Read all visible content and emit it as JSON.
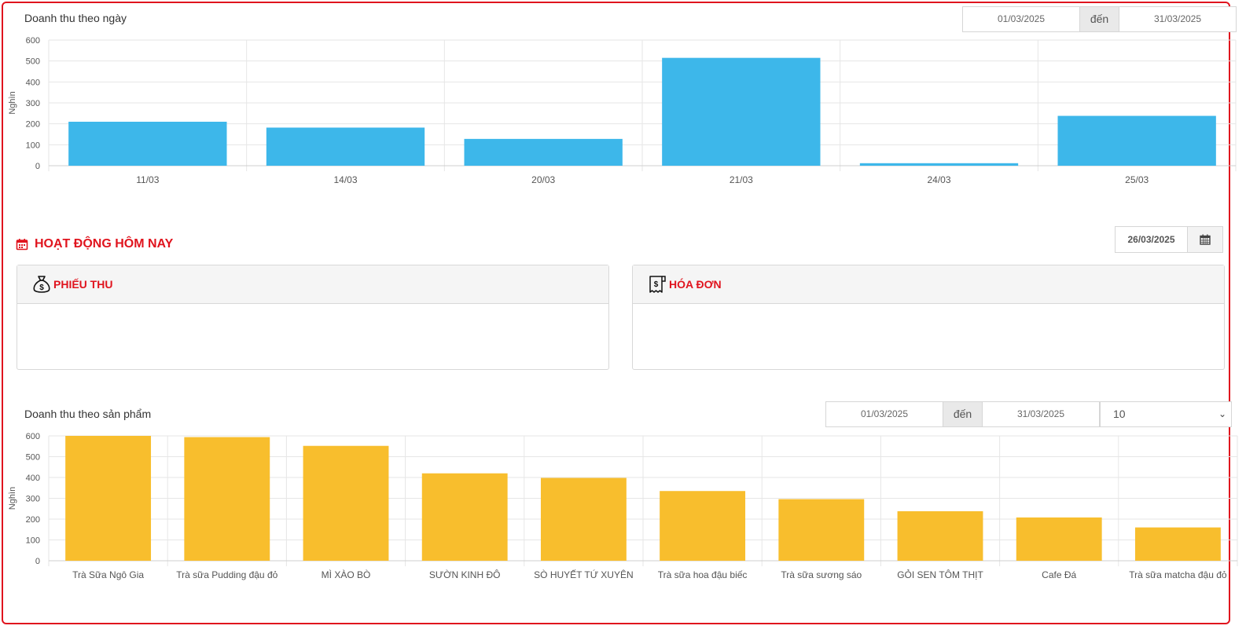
{
  "daily_chart": {
    "title": "Doanh thu theo ngày",
    "date_from": "01/03/2025",
    "date_sep": "đến",
    "date_to": "31/03/2025"
  },
  "today": {
    "title": "HOẠT ĐỘNG HÔM NAY",
    "date": "26/03/2025",
    "receipts_title": "PHIẾU THU",
    "invoices_title": "HÓA ĐƠN"
  },
  "product_chart": {
    "title": "Doanh thu theo sản phẩm",
    "date_from": "01/03/2025",
    "date_sep": "đến",
    "date_to": "31/03/2025",
    "limit": "10"
  },
  "colors": {
    "accent": "#e0141e",
    "daily_bar": "#3db7ea",
    "product_bar": "#f8be2d"
  },
  "chart_data": [
    {
      "type": "bar",
      "title": "Doanh thu theo ngày",
      "xlabel": "",
      "ylabel": "Nghìn",
      "categories": [
        "11/03",
        "14/03",
        "20/03",
        "21/03",
        "24/03",
        "25/03"
      ],
      "values": [
        210,
        182,
        128,
        515,
        12,
        238
      ],
      "ylim": [
        0,
        600
      ],
      "yticks": [
        0,
        100,
        200,
        300,
        400,
        500,
        600
      ],
      "grid": true,
      "color": "#3db7ea"
    },
    {
      "type": "bar",
      "title": "Doanh thu theo sản phẩm",
      "xlabel": "",
      "ylabel": "Nghìn",
      "categories": [
        "Trà Sữa Ngô Gia",
        "Trà sữa Pudding đậu đỏ",
        "MÌ XÀO BÒ",
        "SƯỜN KINH ĐÔ",
        "SÒ HUYẾT TỨ XUYÊN",
        "Trà sữa hoa đậu biếc",
        "Trà sữa sương sáo",
        "GỎI SEN TÔM THỊT",
        "Cafe Đá",
        "Trà sữa matcha đậu đỏ"
      ],
      "values": [
        600,
        594,
        552,
        420,
        398,
        335,
        296,
        238,
        208,
        160
      ],
      "ylim": [
        0,
        600
      ],
      "yticks": [
        0,
        100,
        200,
        300,
        400,
        500,
        600
      ],
      "grid": true,
      "color": "#f8be2d"
    }
  ]
}
